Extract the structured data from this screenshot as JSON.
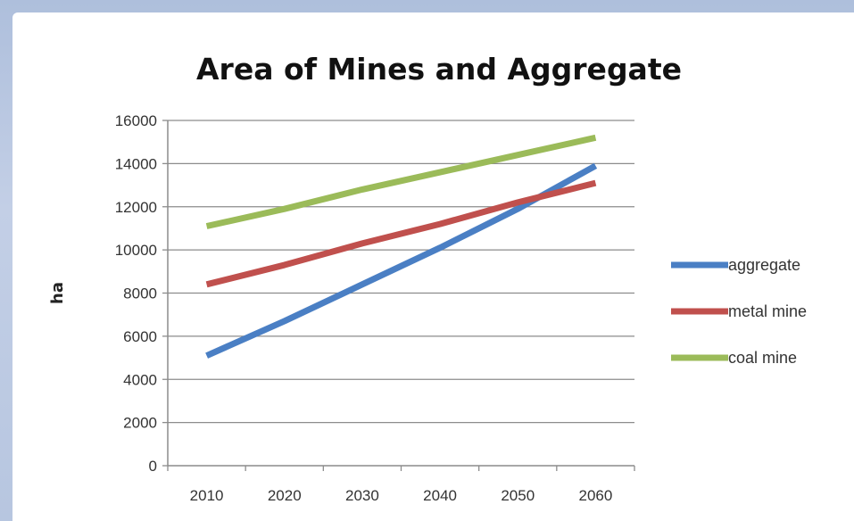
{
  "chart_data": {
    "type": "line",
    "title": "Area of Mines and Aggregate",
    "xlabel": "",
    "ylabel": "ha",
    "categories": [
      "2010",
      "2020",
      "2030",
      "2040",
      "2050",
      "2060"
    ],
    "ylim": [
      0,
      16000
    ],
    "yticks": [
      0,
      2000,
      4000,
      6000,
      8000,
      10000,
      12000,
      14000,
      16000
    ],
    "grid": true,
    "legend_position": "right",
    "series": [
      {
        "name": "aggregate",
        "color": "#4a7fc4",
        "values": [
          5100,
          6700,
          8400,
          10100,
          11900,
          13900
        ]
      },
      {
        "name": "metal mine",
        "color": "#c0504d",
        "values": [
          8400,
          9300,
          10300,
          11200,
          12200,
          13100
        ]
      },
      {
        "name": "coal mine",
        "color": "#9bbb59",
        "values": [
          11100,
          11900,
          12800,
          13600,
          14400,
          15200
        ]
      }
    ]
  }
}
